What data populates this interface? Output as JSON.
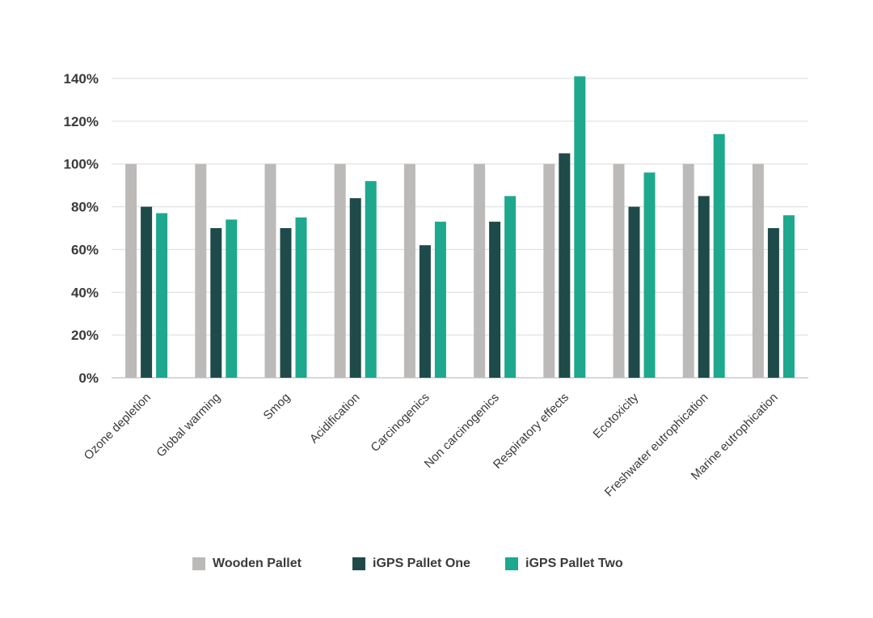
{
  "chart_data": {
    "type": "bar",
    "title": "",
    "xlabel": "",
    "ylabel": "",
    "ylim": [
      0,
      140
    ],
    "yticks": [
      0,
      20,
      40,
      60,
      80,
      100,
      120,
      140
    ],
    "ytick_labels": [
      "0%",
      "20%",
      "40%",
      "60%",
      "80%",
      "100%",
      "120%",
      "140%"
    ],
    "grid": true,
    "legend_position": "bottom",
    "categories": [
      "Ozone depletion",
      "Global warming",
      "Smog",
      "Acidification",
      "Carcinogenics",
      "Non carcinogenics",
      "Respiratory effects",
      "Ecotoxicity",
      "Freshwater eutrophication",
      "Marine eutrophication"
    ],
    "series": [
      {
        "name": "Wooden Pallet",
        "color": "#bcb9b9",
        "values": [
          100,
          100,
          100,
          100,
          100,
          100,
          100,
          100,
          100,
          100
        ]
      },
      {
        "name": "iGPS Pallet One",
        "color": "#1f4a4a",
        "values": [
          80,
          70,
          70,
          84,
          62,
          73,
          105,
          80,
          85,
          70
        ]
      },
      {
        "name": "iGPS Pallet Two",
        "color": "#1ea88d",
        "values": [
          77,
          74,
          75,
          92,
          73,
          85,
          141,
          96,
          114,
          76
        ]
      }
    ]
  }
}
